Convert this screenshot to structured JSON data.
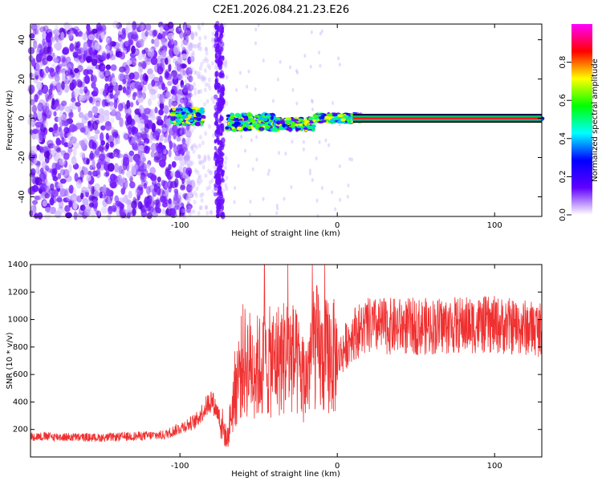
{
  "title": "C2E1.2026.084.21.23.E26",
  "chart_data": [
    {
      "type": "heatmap",
      "xlabel": "Height of straight line (km)",
      "ylabel": "Frequency (Hz)",
      "xlim": [
        -195,
        130
      ],
      "ylim": [
        -50,
        48
      ],
      "xticks": [
        -100,
        0,
        100
      ],
      "yticks": [
        -40,
        -20,
        0,
        20,
        40
      ],
      "colorbar": {
        "label": "Normalized spectral amplitude",
        "range": [
          0,
          1
        ],
        "ticks": [
          0.0,
          0.2,
          0.4,
          0.6,
          0.8
        ],
        "tick_labels": [
          "0.0",
          "0.2",
          "0.4",
          "0.6",
          "0.8"
        ],
        "colors": [
          "#ffffff",
          "#6000ff",
          "#0000ff",
          "#00ffff",
          "#00ff00",
          "#ffff00",
          "#ff0000",
          "#ff00ff"
        ]
      },
      "features": {
        "noise_region_x": [
          -195,
          -100
        ],
        "vertical_stripe_x": -75,
        "carrier_segments": [
          {
            "x": [
              -105,
              -85
            ],
            "y_center": 1,
            "spread": 4
          },
          {
            "x": [
              -70,
              -40
            ],
            "y_center": -2,
            "spread": 4
          },
          {
            "x": [
              -40,
              -15
            ],
            "y_center": -3,
            "spread": 3
          },
          {
            "x": [
              -15,
              15
            ],
            "y_center": 0,
            "spread": 2
          },
          {
            "x": [
              15,
              130
            ],
            "y_center": 0,
            "spread": 1
          }
        ]
      }
    },
    {
      "type": "line",
      "xlabel": "Height of straight line (km)",
      "ylabel": "SNR (10 * v/v)",
      "xlim": [
        -195,
        130
      ],
      "ylim": [
        0,
        1400
      ],
      "xticks": [
        -100,
        0,
        100
      ],
      "yticks": [
        200,
        400,
        600,
        800,
        1000,
        1200,
        1400
      ],
      "line_color": "#f03030",
      "series": [
        {
          "x": [
            -195,
            -150,
            -110,
            -90,
            -80,
            -75,
            -70,
            -65,
            -60,
            -50,
            -40,
            -30,
            -20,
            -15,
            -10,
            -5,
            0,
            10,
            20,
            40,
            60,
            80,
            100,
            120,
            130
          ],
          "values": [
            150,
            140,
            160,
            260,
            420,
            300,
            120,
            500,
            700,
            650,
            700,
            750,
            550,
            850,
            700,
            750,
            700,
            900,
            950,
            950,
            950,
            960,
            960,
            940,
            930
          ]
        }
      ]
    }
  ]
}
